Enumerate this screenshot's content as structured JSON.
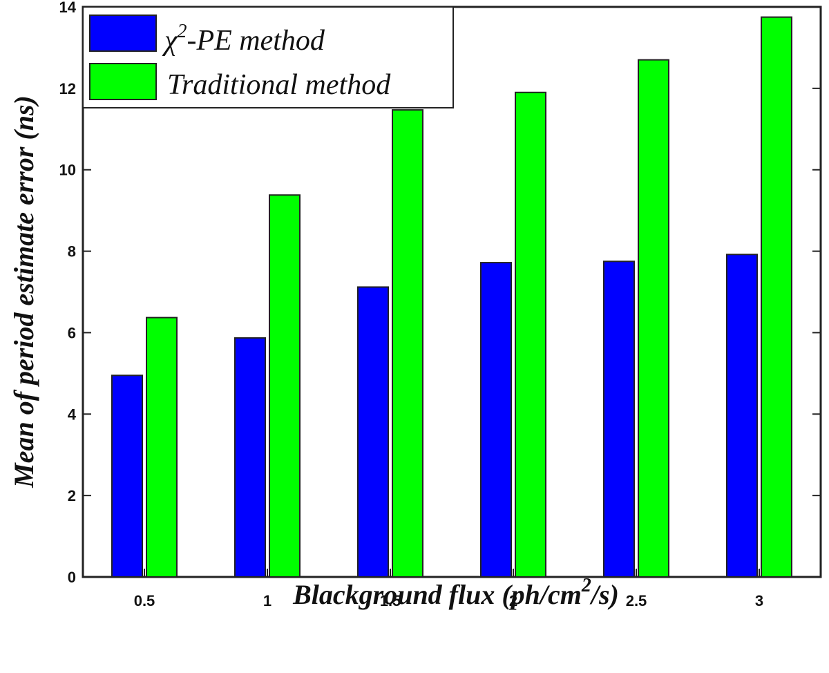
{
  "chart_data": {
    "type": "bar",
    "categories": [
      "0.5",
      "1",
      "1.5",
      "2",
      "2.5",
      "3"
    ],
    "series": [
      {
        "name": "χ²-PE method",
        "values": [
          4.95,
          5.87,
          7.12,
          7.72,
          7.75,
          7.92
        ]
      },
      {
        "name": "Traditional method",
        "values": [
          6.37,
          9.38,
          11.47,
          11.9,
          12.7,
          13.75
        ]
      }
    ],
    "title": "",
    "xlabel": "Blackground flux (ph/cm²/s)",
    "ylabel": "Mean of period estimate error (ns)",
    "ylim": [
      0,
      14
    ],
    "yticks": [
      "0",
      "2",
      "4",
      "6",
      "8",
      "10",
      "12",
      "14"
    ],
    "grid": false,
    "legend_position": "top-left"
  },
  "legend": {
    "items": [
      {
        "symbol": "χ",
        "superscript": "2",
        "text": "-PE method",
        "color": "#0000ff"
      },
      {
        "symbol": "",
        "superscript": "",
        "text": "Traditional method",
        "color": "#00ff00"
      }
    ]
  },
  "axis_titles": {
    "x_main": "Blackground flux (ph/cm",
    "x_sup": "2",
    "x_end": "/s)",
    "y": "Mean of period estimate error (ns)"
  }
}
